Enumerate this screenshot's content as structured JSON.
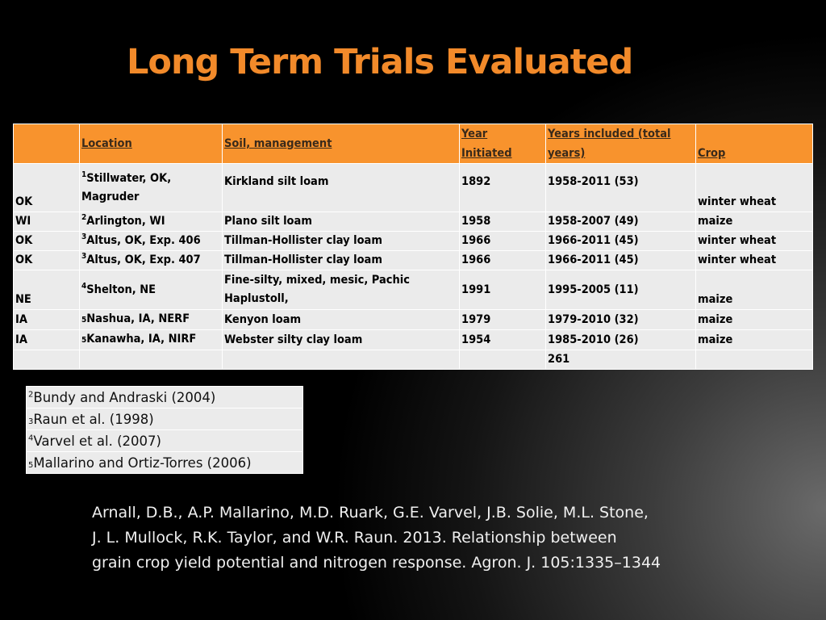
{
  "title": "Long Term Trials Evaluated",
  "table": {
    "headers": {
      "location": "Location",
      "soil": "Soil, management",
      "year_line1": "Year",
      "year_line2": "Initiated",
      "years_line1": "Years included (total",
      "years_line2": "years)",
      "crop": "Crop"
    },
    "rows": [
      {
        "state": "OK",
        "sup": "1",
        "loc_line1": "Stillwater, OK,",
        "loc_line2": "Magruder",
        "soil": "Kirkland silt loam",
        "year": "1892",
        "years": "1958-2011 (53)",
        "crop": "winter wheat"
      },
      {
        "state": "WI",
        "sup": "2",
        "loc": "Arlington, WI",
        "soil": "Plano silt loam",
        "year": "1958",
        "years": "1958-2007 (49)",
        "crop": "maize"
      },
      {
        "state": "OK",
        "sup": "3",
        "loc": "Altus, OK, Exp. 406",
        "soil": "Tillman-Hollister clay loam",
        "year": "1966",
        "years": "1966-2011 (45)",
        "crop": "winter wheat"
      },
      {
        "state": "OK",
        "sup": "3",
        "loc": "Altus, OK, Exp. 407",
        "soil": "Tillman-Hollister clay loam",
        "year": "1966",
        "years": "1966-2011 (45)",
        "crop": "winter wheat"
      },
      {
        "state": "NE",
        "sup": "4",
        "loc": "Shelton, NE",
        "soil_line1": "Fine-silty, mixed, mesic, Pachic",
        "soil_line2": "Haplustoll,",
        "year": "1991",
        "years": "1995-2005 (11)",
        "crop": "maize"
      },
      {
        "state": "IA",
        "sup": "5",
        "loc": "Nashua, IA, NERF",
        "soil": "Kenyon loam",
        "year": "1979",
        "years": "1979-2010 (32)",
        "crop": "maize"
      },
      {
        "state": "IA",
        "sup": "5",
        "loc": "Kanawha, IA, NIRF",
        "soil": "Webster silty clay loam",
        "year": "1954",
        "years": "1985-2010 (26)",
        "crop": "maize"
      }
    ],
    "total": "261"
  },
  "references": [
    {
      "sup": "2",
      "text": "Bundy and Andraski (2004)"
    },
    {
      "sup": "3",
      "text": "Raun et al. (1998)"
    },
    {
      "sup": "4",
      "text": "Varvel et al. (2007)"
    },
    {
      "sup": "5",
      "text": "Mallarino and Ortiz-Torres (2006)"
    }
  ],
  "citation": {
    "line1": "Arnall, D.B., A.P. Mallarino, M.D. Ruark, G.E. Varvel, J.B. Solie, M.L. Stone,",
    "line2": "J. L. Mullock, R.K. Taylor, and W.R. Raun. 2013. Relationship between",
    "line3": "grain crop yield potential and nitrogen response.  Agron. J. 105:1335–1344"
  }
}
